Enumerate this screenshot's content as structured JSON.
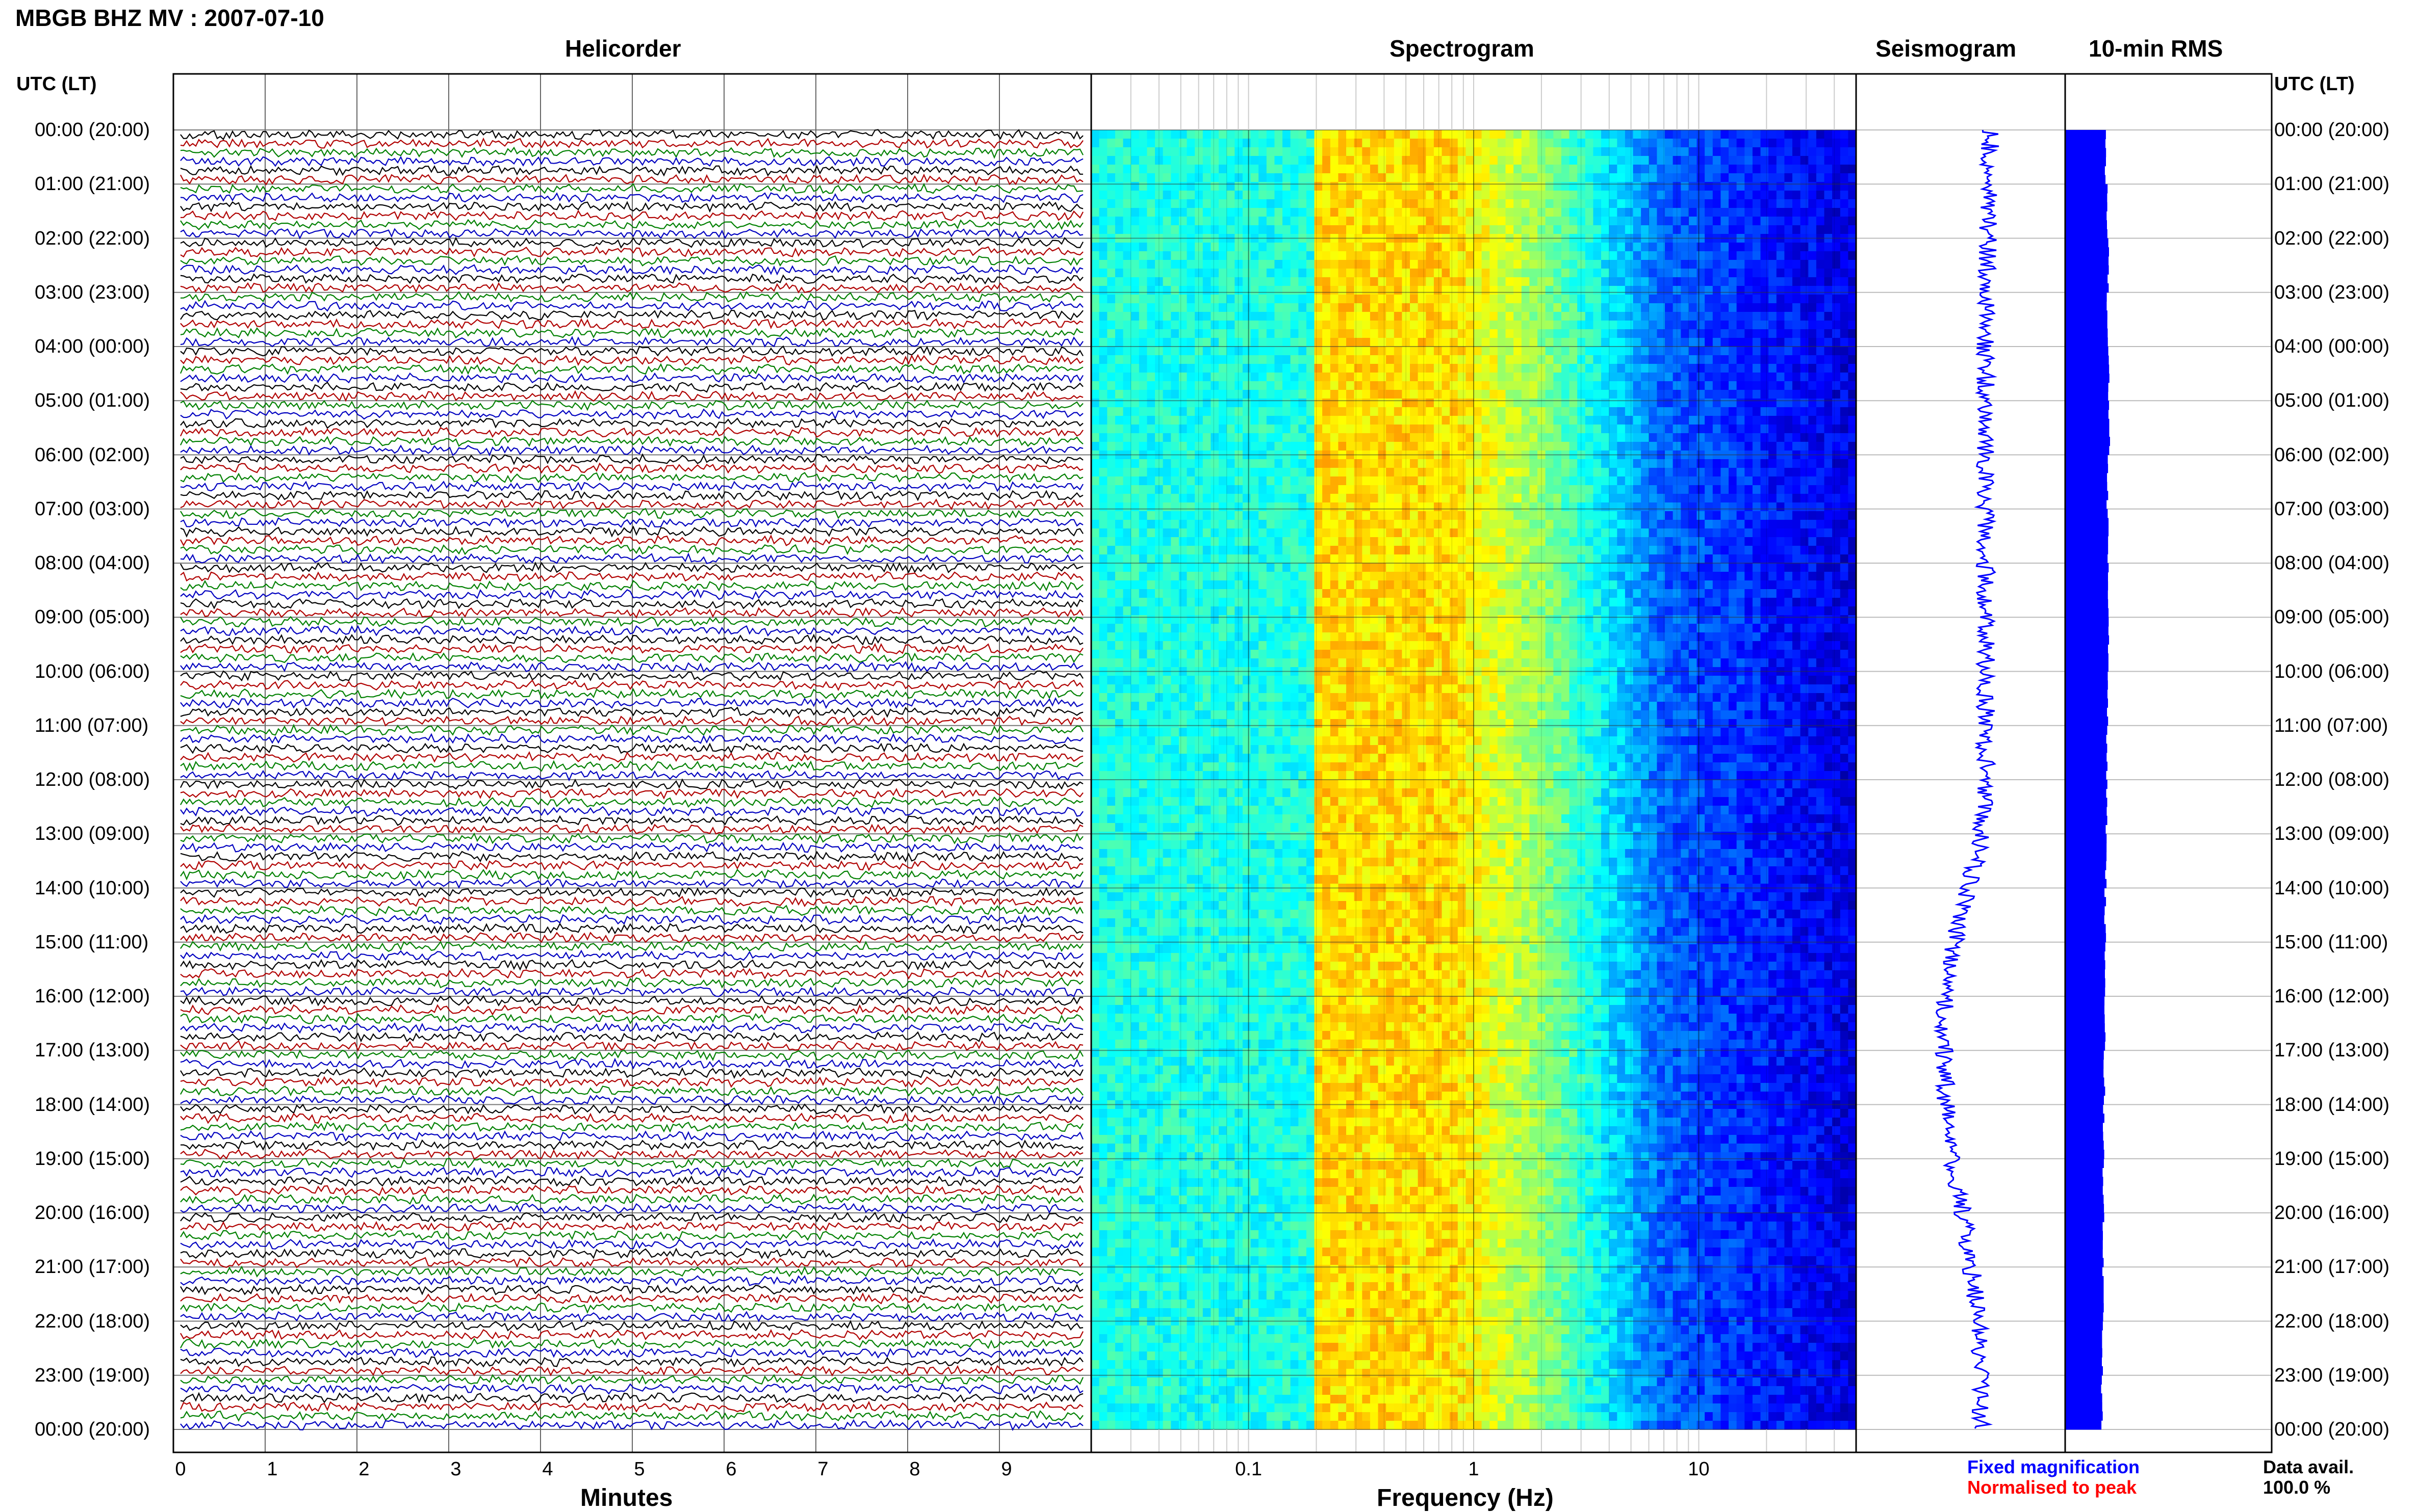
{
  "header": {
    "title": "MBGB BHZ MV : 2007-07-10",
    "panel_titles": {
      "helicorder": "Helicorder",
      "spectrogram": "Spectrogram",
      "seismogram": "Seismogram",
      "rms": "10-min RMS"
    },
    "utc_left": "UTC (LT)",
    "utc_right": "UTC (LT)"
  },
  "footer": {
    "xlabel_minutes": "Minutes",
    "xlabel_frequency": "Frequency (Hz)",
    "legend_fixed": "Fixed magnification",
    "legend_normalised": "Normalised to peak",
    "data_avail_label": "Data avail.",
    "data_avail_value": "100.0 %"
  },
  "colors": {
    "trace_cycle": [
      "#000000",
      "#b00000",
      "#008000",
      "#0000c0"
    ],
    "legend_fixed": "#0000ff",
    "legend_normalised": "#ff0000",
    "rms_bar": "#0000ff"
  },
  "chart_data": [
    {
      "type": "line",
      "title": "Helicorder",
      "xlabel": "Minutes",
      "x_ticks": [
        "0",
        "1",
        "2",
        "3",
        "4",
        "5",
        "6",
        "7",
        "8",
        "9"
      ],
      "xlim": [
        0,
        10
      ],
      "hour_labels": [
        "00:00 (20:00)",
        "01:00 (21:00)",
        "02:00 (22:00)",
        "03:00 (23:00)",
        "04:00 (00:00)",
        "05:00 (01:00)",
        "06:00 (02:00)",
        "07:00 (03:00)",
        "08:00 (04:00)",
        "09:00 (05:00)",
        "10:00 (06:00)",
        "11:00 (07:00)",
        "12:00 (08:00)",
        "13:00 (09:00)",
        "14:00 (10:00)",
        "15:00 (11:00)",
        "16:00 (12:00)",
        "17:00 (13:00)",
        "18:00 (14:00)",
        "19:00 (15:00)",
        "20:00 (16:00)",
        "21:00 (17:00)",
        "22:00 (18:00)",
        "23:00 (19:00)",
        "00:00 (20:00)"
      ],
      "lines_per_hour": 6,
      "trace_count": 144
    },
    {
      "type": "heatmap",
      "title": "Spectrogram",
      "xlabel": "Frequency (Hz)",
      "x_scale": "log",
      "x_ticks": [
        "0.1",
        "1",
        "10"
      ],
      "xlim": [
        0.02,
        50
      ],
      "colormap": "jet",
      "peak_band_hz": [
        0.2,
        0.8
      ]
    },
    {
      "type": "line",
      "title": "Seismogram",
      "trend": [
        0.64,
        0.64,
        0.63,
        0.62,
        0.62,
        0.62,
        0.62,
        0.62,
        0.62,
        0.62,
        0.62,
        0.62,
        0.62,
        0.6,
        0.54,
        0.47,
        0.43,
        0.42,
        0.43,
        0.46,
        0.51,
        0.55,
        0.59,
        0.6,
        0.6
      ]
    },
    {
      "type": "bar",
      "title": "10-min RMS",
      "orientation": "horizontal",
      "values": [
        0.88,
        0.93,
        0.95,
        0.92,
        0.96,
        0.97,
        0.93,
        0.94,
        0.96,
        0.95,
        0.93,
        0.92,
        0.91,
        0.9,
        0.88,
        0.87,
        0.87,
        0.86,
        0.85,
        0.84,
        0.84,
        0.83,
        0.82,
        0.81
      ]
    }
  ]
}
